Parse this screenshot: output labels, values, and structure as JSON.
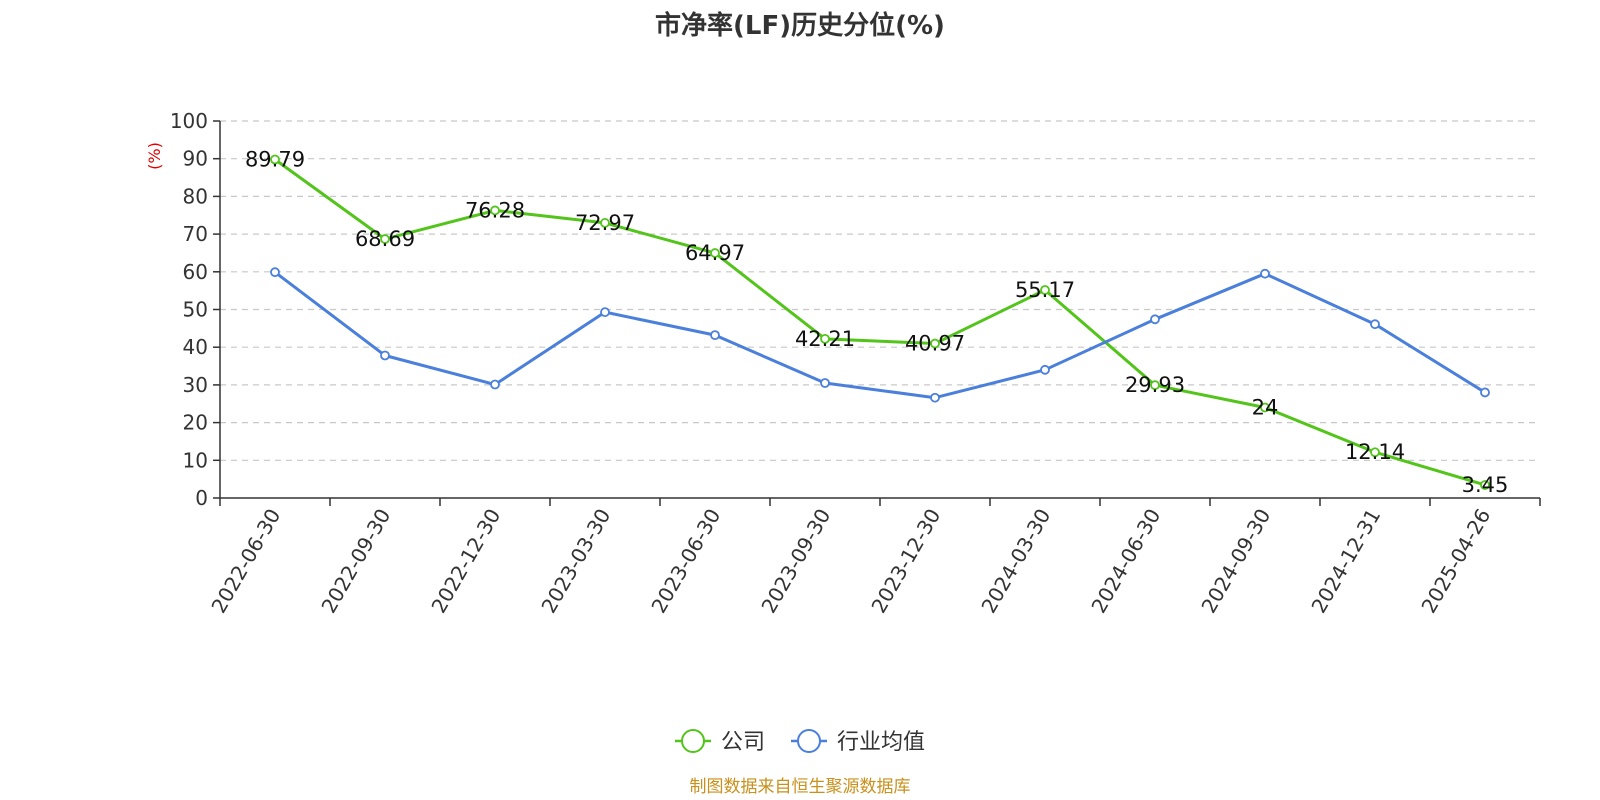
{
  "chart_data": {
    "type": "line",
    "title": "市净率(LF)历史分位(%)",
    "ylabel": "(%)",
    "xlabel": "",
    "ylim": [
      0,
      100
    ],
    "yticks": [
      0,
      10,
      20,
      30,
      40,
      50,
      60,
      70,
      80,
      90,
      100
    ],
    "grid": true,
    "legend_position": "bottom-center",
    "categories": [
      "2022-06-30",
      "2022-09-30",
      "2022-12-30",
      "2023-03-30",
      "2023-06-30",
      "2023-09-30",
      "2023-12-30",
      "2024-03-30",
      "2024-06-30",
      "2024-09-30",
      "2024-12-31",
      "2025-04-26"
    ],
    "series": [
      {
        "name": "公司",
        "color": "#52c41a",
        "values": [
          89.79,
          68.69,
          76.28,
          72.97,
          64.97,
          42.21,
          40.97,
          55.17,
          29.93,
          24,
          12.14,
          3.45
        ],
        "labels": [
          "89.79",
          "68.69",
          "76.28",
          "72.97",
          "64.97",
          "42.21",
          "40.97",
          "55.17",
          "29.93",
          "24",
          "12.14",
          "3.45"
        ]
      },
      {
        "name": "行业均值",
        "color": "#4a7fdc",
        "values": [
          59.9,
          37.8,
          30.1,
          49.3,
          43.2,
          30.5,
          26.6,
          34.0,
          47.4,
          59.5,
          46.1,
          28.0
        ]
      }
    ],
    "source": "制图数据来自恒生聚源数据库"
  }
}
